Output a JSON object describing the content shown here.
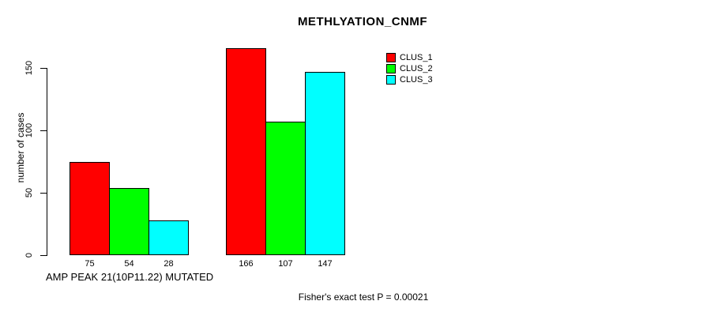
{
  "chart_data": {
    "type": "bar",
    "title": "METHLYATION_CNMF",
    "ylabel": "number of cases",
    "xlabel": "AMP PEAK 21(10P11.22) MUTATED",
    "annotation": "Fisher's exact test P = 0.00021",
    "series": [
      {
        "name": "CLUS_1",
        "color": "#ff0000",
        "values": [
          75,
          166
        ]
      },
      {
        "name": "CLUS_2",
        "color": "#00ff00",
        "values": [
          54,
          107
        ]
      },
      {
        "name": "CLUS_3",
        "color": "#00ffff",
        "values": [
          28,
          147
        ]
      }
    ],
    "groups": 2,
    "bar_value_labels": [
      [
        75,
        54,
        28
      ],
      [
        166,
        107,
        147
      ]
    ],
    "yticks": [
      0,
      50,
      100,
      150
    ],
    "ylim": [
      0,
      150
    ],
    "grid": false,
    "legend_position": "top-right",
    "background_color": "#ffffff",
    "text_color": "#000000"
  }
}
